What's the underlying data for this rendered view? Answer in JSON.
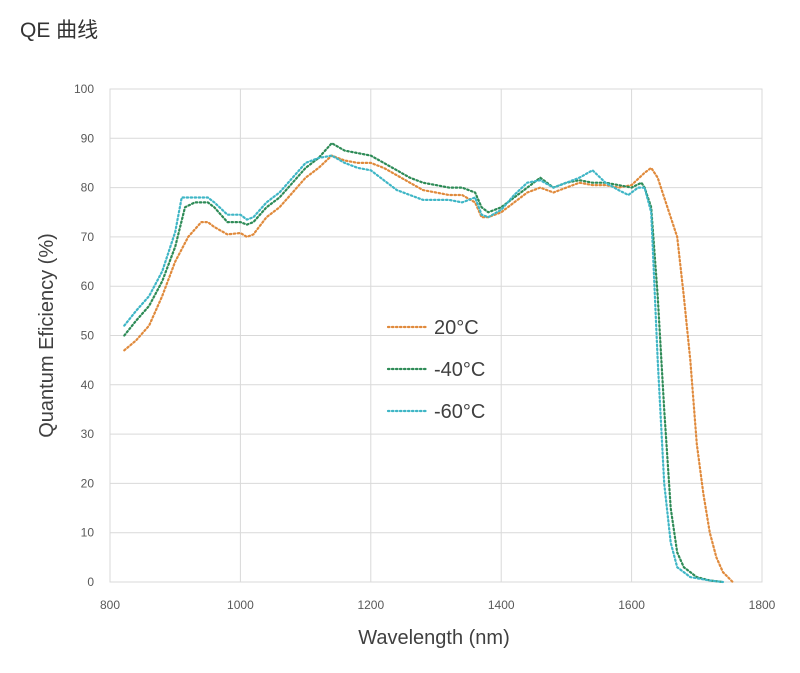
{
  "page": {
    "title": "QE 曲线"
  },
  "chart_data": {
    "type": "line",
    "title": "",
    "xlabel": "Wavelength (nm)",
    "ylabel": "Quantum Eficiency (%)",
    "xlim": [
      800,
      1800
    ],
    "ylim": [
      0,
      100
    ],
    "x_ticks": [
      800,
      1000,
      1200,
      1400,
      1600,
      1800
    ],
    "y_ticks": [
      0,
      10,
      20,
      30,
      40,
      50,
      60,
      70,
      80,
      90,
      100
    ],
    "grid": true,
    "legend_position": "center",
    "line_style": "dotted",
    "series": [
      {
        "name": "20°C",
        "color": "#e08a3c",
        "points": [
          [
            822,
            47
          ],
          [
            840,
            49
          ],
          [
            860,
            52
          ],
          [
            880,
            58
          ],
          [
            900,
            65
          ],
          [
            920,
            70
          ],
          [
            940,
            73
          ],
          [
            950,
            73
          ],
          [
            960,
            72
          ],
          [
            980,
            70.5
          ],
          [
            1000,
            70.8
          ],
          [
            1010,
            70
          ],
          [
            1020,
            70.5
          ],
          [
            1040,
            74
          ],
          [
            1060,
            76
          ],
          [
            1080,
            79
          ],
          [
            1100,
            82
          ],
          [
            1120,
            84
          ],
          [
            1140,
            86.5
          ],
          [
            1160,
            85.5
          ],
          [
            1180,
            85
          ],
          [
            1200,
            85
          ],
          [
            1220,
            84
          ],
          [
            1240,
            82.5
          ],
          [
            1260,
            81
          ],
          [
            1280,
            79.5
          ],
          [
            1300,
            79
          ],
          [
            1320,
            78.5
          ],
          [
            1340,
            78.5
          ],
          [
            1360,
            77
          ],
          [
            1370,
            74
          ],
          [
            1380,
            74
          ],
          [
            1400,
            75
          ],
          [
            1420,
            77
          ],
          [
            1440,
            79
          ],
          [
            1460,
            80
          ],
          [
            1480,
            79
          ],
          [
            1500,
            80
          ],
          [
            1520,
            81
          ],
          [
            1540,
            80.5
          ],
          [
            1560,
            80.5
          ],
          [
            1580,
            80
          ],
          [
            1600,
            80.5
          ],
          [
            1620,
            83
          ],
          [
            1630,
            84
          ],
          [
            1640,
            82
          ],
          [
            1650,
            78
          ],
          [
            1660,
            74
          ],
          [
            1670,
            70
          ],
          [
            1680,
            58
          ],
          [
            1690,
            45
          ],
          [
            1700,
            28
          ],
          [
            1710,
            18
          ],
          [
            1720,
            10
          ],
          [
            1730,
            5
          ],
          [
            1740,
            2
          ],
          [
            1755,
            0
          ]
        ]
      },
      {
        "name": "-40°C",
        "color": "#2e8b57",
        "points": [
          [
            822,
            50
          ],
          [
            840,
            53
          ],
          [
            860,
            56
          ],
          [
            880,
            61
          ],
          [
            900,
            68
          ],
          [
            915,
            76
          ],
          [
            930,
            77
          ],
          [
            950,
            77
          ],
          [
            960,
            76
          ],
          [
            980,
            73
          ],
          [
            1000,
            73
          ],
          [
            1010,
            72.5
          ],
          [
            1020,
            73
          ],
          [
            1040,
            76
          ],
          [
            1060,
            78
          ],
          [
            1080,
            81
          ],
          [
            1100,
            84
          ],
          [
            1120,
            86
          ],
          [
            1140,
            89
          ],
          [
            1160,
            87.5
          ],
          [
            1180,
            87
          ],
          [
            1200,
            86.5
          ],
          [
            1220,
            85
          ],
          [
            1240,
            83.5
          ],
          [
            1260,
            82
          ],
          [
            1280,
            81
          ],
          [
            1300,
            80.5
          ],
          [
            1320,
            80
          ],
          [
            1340,
            80
          ],
          [
            1360,
            79
          ],
          [
            1370,
            76
          ],
          [
            1380,
            75
          ],
          [
            1400,
            76
          ],
          [
            1420,
            78
          ],
          [
            1440,
            80
          ],
          [
            1460,
            82
          ],
          [
            1480,
            80
          ],
          [
            1500,
            81
          ],
          [
            1520,
            81.5
          ],
          [
            1540,
            81
          ],
          [
            1560,
            81
          ],
          [
            1580,
            80.5
          ],
          [
            1600,
            80
          ],
          [
            1615,
            81
          ],
          [
            1620,
            80
          ],
          [
            1630,
            76
          ],
          [
            1640,
            58
          ],
          [
            1650,
            35
          ],
          [
            1660,
            15
          ],
          [
            1670,
            6
          ],
          [
            1680,
            3
          ],
          [
            1700,
            1
          ],
          [
            1720,
            0.3
          ],
          [
            1740,
            0
          ]
        ]
      },
      {
        "name": "-60°C",
        "color": "#3fb6c6",
        "points": [
          [
            822,
            52
          ],
          [
            840,
            55
          ],
          [
            860,
            58
          ],
          [
            880,
            63
          ],
          [
            900,
            71
          ],
          [
            910,
            78
          ],
          [
            930,
            78
          ],
          [
            950,
            78
          ],
          [
            960,
            77
          ],
          [
            980,
            74.5
          ],
          [
            1000,
            74.5
          ],
          [
            1010,
            73.5
          ],
          [
            1020,
            74
          ],
          [
            1040,
            77
          ],
          [
            1060,
            79
          ],
          [
            1080,
            82
          ],
          [
            1100,
            85
          ],
          [
            1120,
            86
          ],
          [
            1140,
            86.5
          ],
          [
            1160,
            85
          ],
          [
            1180,
            84
          ],
          [
            1200,
            83.5
          ],
          [
            1220,
            81.5
          ],
          [
            1240,
            79.5
          ],
          [
            1260,
            78.5
          ],
          [
            1280,
            77.5
          ],
          [
            1300,
            77.5
          ],
          [
            1320,
            77.5
          ],
          [
            1340,
            77
          ],
          [
            1360,
            78
          ],
          [
            1370,
            74.5
          ],
          [
            1380,
            74
          ],
          [
            1400,
            75.5
          ],
          [
            1420,
            78.5
          ],
          [
            1440,
            81
          ],
          [
            1460,
            81.5
          ],
          [
            1480,
            80
          ],
          [
            1500,
            81
          ],
          [
            1520,
            82
          ],
          [
            1540,
            83.5
          ],
          [
            1560,
            81
          ],
          [
            1580,
            79.5
          ],
          [
            1595,
            78.5
          ],
          [
            1610,
            80
          ],
          [
            1620,
            80
          ],
          [
            1630,
            75
          ],
          [
            1640,
            45
          ],
          [
            1650,
            20
          ],
          [
            1660,
            8
          ],
          [
            1670,
            3
          ],
          [
            1690,
            1
          ],
          [
            1720,
            0.3
          ],
          [
            1740,
            0
          ]
        ]
      }
    ]
  }
}
